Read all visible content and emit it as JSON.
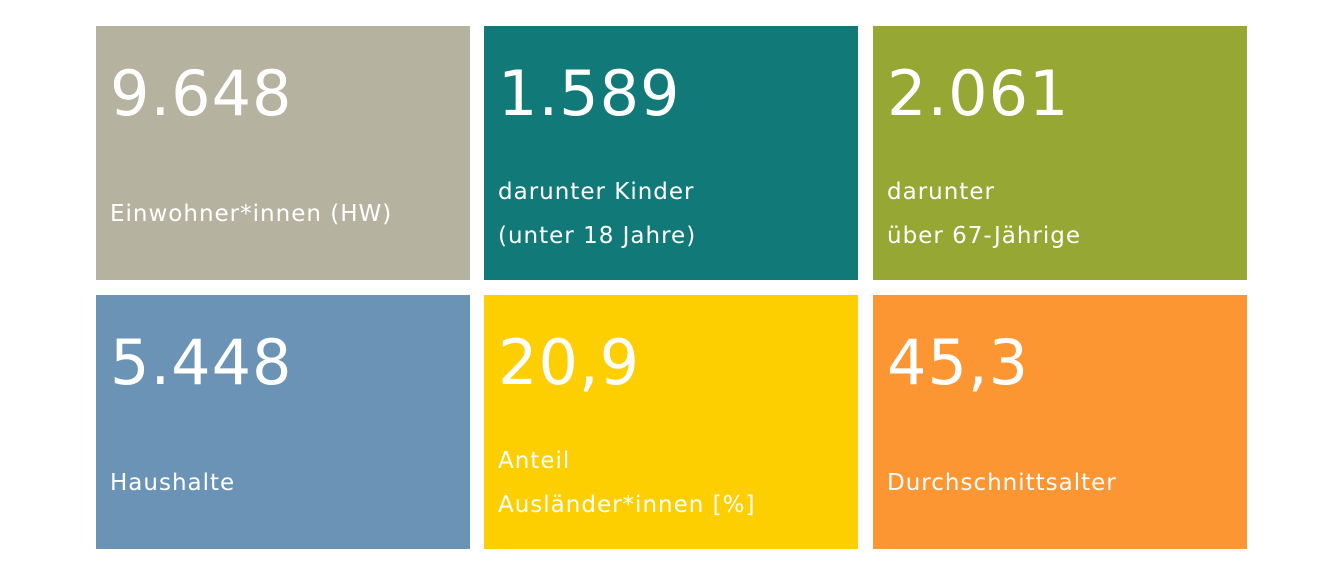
{
  "tiles": [
    {
      "value": "9.648",
      "label": [
        "Einwohner*innen (HW)"
      ],
      "color": "#b5b3a0"
    },
    {
      "value": "1.589",
      "label": [
        "darunter Kinder",
        "(unter 18 Jahre)"
      ],
      "color": "#117a78"
    },
    {
      "value": "2.061",
      "label": [
        "darunter",
        "über 67-Jährige"
      ],
      "color": "#96a733"
    },
    {
      "value": "5.448",
      "label": [
        "Haushalte"
      ],
      "color": "#6b93b5"
    },
    {
      "value": "20,9",
      "label": [
        "Anteil",
        "Ausländer*innen [%]"
      ],
      "color": "#fdcf00"
    },
    {
      "value": "45,3",
      "label": [
        "Durchschnittsalter"
      ],
      "color": "#fb9633"
    }
  ]
}
